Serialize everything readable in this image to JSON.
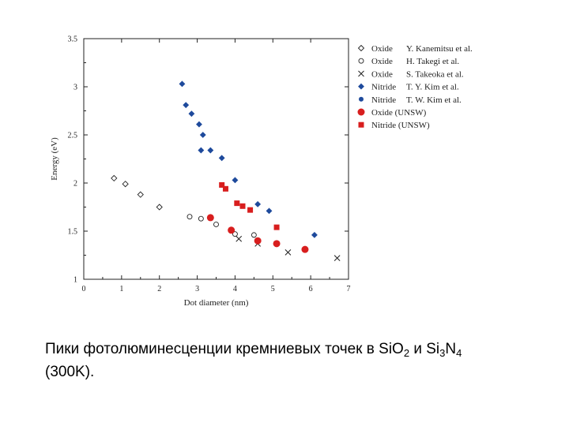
{
  "chart_data": {
    "type": "scatter",
    "xlabel": "Dot diameter (nm)",
    "ylabel": "Energy (eV)",
    "xlim": [
      0,
      7
    ],
    "ylim": [
      1,
      3.5
    ],
    "xticks": [
      "0",
      "1",
      "2",
      "3",
      "4",
      "5",
      "6",
      "7"
    ],
    "yticks": [
      "1",
      "1.5",
      "2",
      "2.5",
      "3",
      "3.5"
    ],
    "legend_position": "right",
    "series": [
      {
        "name": "Oxide",
        "author": "Y. Kanemitsu et al.",
        "marker": "diamond-open",
        "color": "#222222",
        "points": [
          [
            0.8,
            2.05
          ],
          [
            1.1,
            1.99
          ],
          [
            1.5,
            1.88
          ],
          [
            2.0,
            1.75
          ]
        ]
      },
      {
        "name": "Oxide",
        "author": "H. Takegi et al.",
        "marker": "circle-open",
        "color": "#222222",
        "points": [
          [
            2.8,
            1.65
          ],
          [
            3.1,
            1.63
          ],
          [
            3.5,
            1.57
          ],
          [
            4.0,
            1.47
          ],
          [
            4.5,
            1.46
          ]
        ]
      },
      {
        "name": "Oxide",
        "author": "S. Takeoka et al.",
        "marker": "x",
        "color": "#222222",
        "points": [
          [
            4.1,
            1.42
          ],
          [
            4.6,
            1.37
          ],
          [
            5.4,
            1.28
          ],
          [
            6.7,
            1.22
          ]
        ]
      },
      {
        "name": "Nitride",
        "author": "T. Y. Kim et al.",
        "marker": "diamond-filled",
        "color": "#1e4a9c",
        "points": [
          [
            2.6,
            3.03
          ],
          [
            2.7,
            2.81
          ],
          [
            2.85,
            2.72
          ],
          [
            3.05,
            2.61
          ],
          [
            3.15,
            2.5
          ],
          [
            3.1,
            2.34
          ],
          [
            3.35,
            2.34
          ],
          [
            3.65,
            2.26
          ],
          [
            4.0,
            2.03
          ],
          [
            4.6,
            1.78
          ],
          [
            4.9,
            1.71
          ],
          [
            6.1,
            1.46
          ]
        ]
      },
      {
        "name": "Nitride",
        "author": "T. W. Kim et al.",
        "marker": "circle-filled",
        "color": "#1e4a9c",
        "points": []
      },
      {
        "name": "Oxide (UNSW)",
        "author": "",
        "marker": "circle-big-filled",
        "color": "#d81e1e",
        "points": [
          [
            3.35,
            1.64
          ],
          [
            3.9,
            1.51
          ],
          [
            4.6,
            1.4
          ],
          [
            5.1,
            1.37
          ],
          [
            5.85,
            1.31
          ]
        ]
      },
      {
        "name": "Nitride (UNSW)",
        "author": "",
        "marker": "square-filled",
        "color": "#d81e1e",
        "points": [
          [
            3.65,
            1.98
          ],
          [
            3.75,
            1.94
          ],
          [
            4.05,
            1.79
          ],
          [
            4.2,
            1.76
          ],
          [
            4.4,
            1.72
          ],
          [
            5.1,
            1.54
          ]
        ]
      }
    ]
  },
  "caption": {
    "line1_a": "Пики фотолюминесценции кремниевых точек в SiO",
    "line1_b": "2",
    "line1_c": " и Si",
    "line1_d": "3",
    "line1_e": "N",
    "line1_f": "4",
    "line2": "(300K)."
  }
}
